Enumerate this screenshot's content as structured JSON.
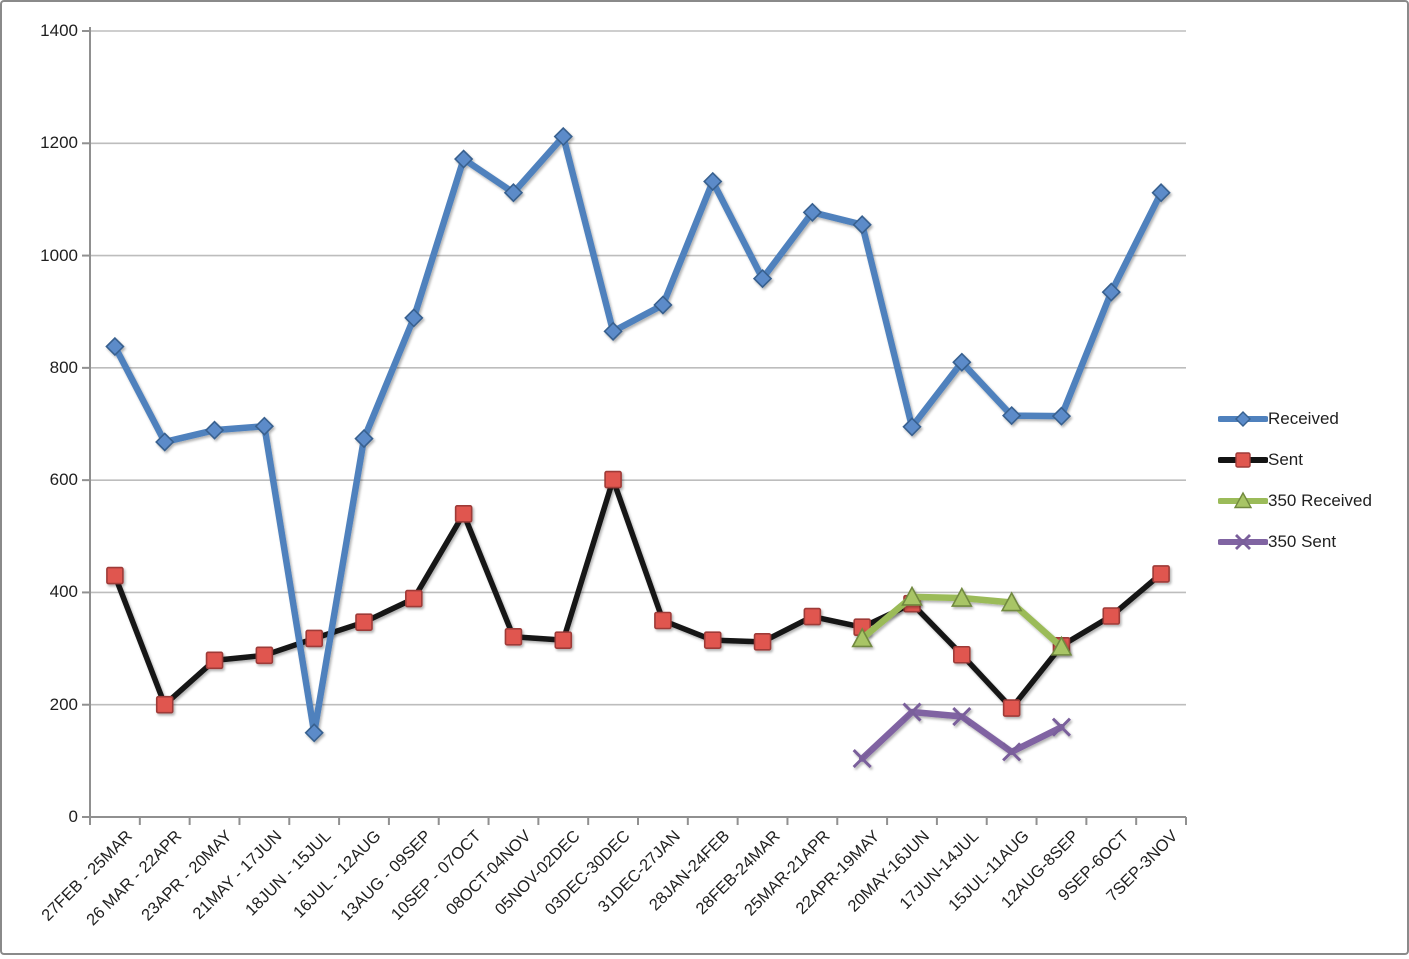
{
  "chart_data": {
    "type": "line",
    "title": "",
    "xlabel": "",
    "ylabel": "",
    "ylim": [
      0,
      1400
    ],
    "y_ticks": [
      0,
      200,
      400,
      600,
      800,
      1000,
      1200,
      1400
    ],
    "grid": true,
    "legend_position": "right",
    "grid_color": "#bdbdbd",
    "axis_color": "#909090",
    "categories": [
      "27FEB - 25MAR",
      "26 MAR - 22APR",
      "23APR - 20MAY",
      "21MAY - 17JUN",
      "18JUN - 15JUL",
      "16JUL - 12AUG",
      "13AUG - 09SEP",
      "10SEP - 07OCT",
      "08OCT-04NOV",
      "05NOV-02DEC",
      "03DEC-30DEC",
      "31DEC-27JAN",
      "28JAN-24FEB",
      "28FEB-24MAR",
      "25MAR-21APR",
      "22APR-19MAY",
      "20MAY-16JUN",
      "17JUN-14JUL",
      "15JUL-11AUG",
      "12AUG-8SEP",
      "9SEP-6OCT",
      "7SEP-3NOV"
    ],
    "series": [
      {
        "name": "Received",
        "marker": "diamond",
        "line_color": "#4f81bd",
        "marker_fill": "#5b8bc9",
        "marker_stroke": "#38618f",
        "values": [
          838,
          668,
          689,
          696,
          150,
          674,
          889,
          1172,
          1112,
          1212,
          865,
          912,
          1132,
          959,
          1077,
          1055,
          695,
          810,
          715,
          714,
          935,
          1112
        ]
      },
      {
        "name": "Sent",
        "marker": "square",
        "line_color": "#141414",
        "marker_fill": "#e0574f",
        "marker_stroke": "#9e3b38",
        "values": [
          430,
          200,
          279,
          288,
          318,
          347,
          389,
          540,
          321,
          315,
          601,
          350,
          315,
          312,
          357,
          338,
          380,
          289,
          194,
          305,
          358,
          433
        ]
      },
      {
        "name": "350 Received",
        "marker": "triangle",
        "line_color": "#9bbb59",
        "marker_fill": "#a8c566",
        "marker_stroke": "#71893f",
        "values": [
          null,
          null,
          null,
          null,
          null,
          null,
          null,
          null,
          null,
          null,
          null,
          null,
          null,
          null,
          null,
          318,
          392,
          390,
          382,
          303,
          null,
          null
        ]
      },
      {
        "name": "350 Sent",
        "marker": "x",
        "line_color": "#8064a2",
        "marker_fill": "#8064a2",
        "marker_stroke": "#7a5f9b",
        "values": [
          null,
          null,
          null,
          null,
          null,
          null,
          null,
          null,
          null,
          null,
          null,
          null,
          null,
          null,
          null,
          104,
          187,
          179,
          116,
          160,
          null,
          null
        ]
      }
    ]
  },
  "legend": {
    "items": [
      {
        "label": "Received"
      },
      {
        "label": "Sent"
      },
      {
        "label": "350 Received"
      },
      {
        "label": "350 Sent"
      }
    ]
  }
}
